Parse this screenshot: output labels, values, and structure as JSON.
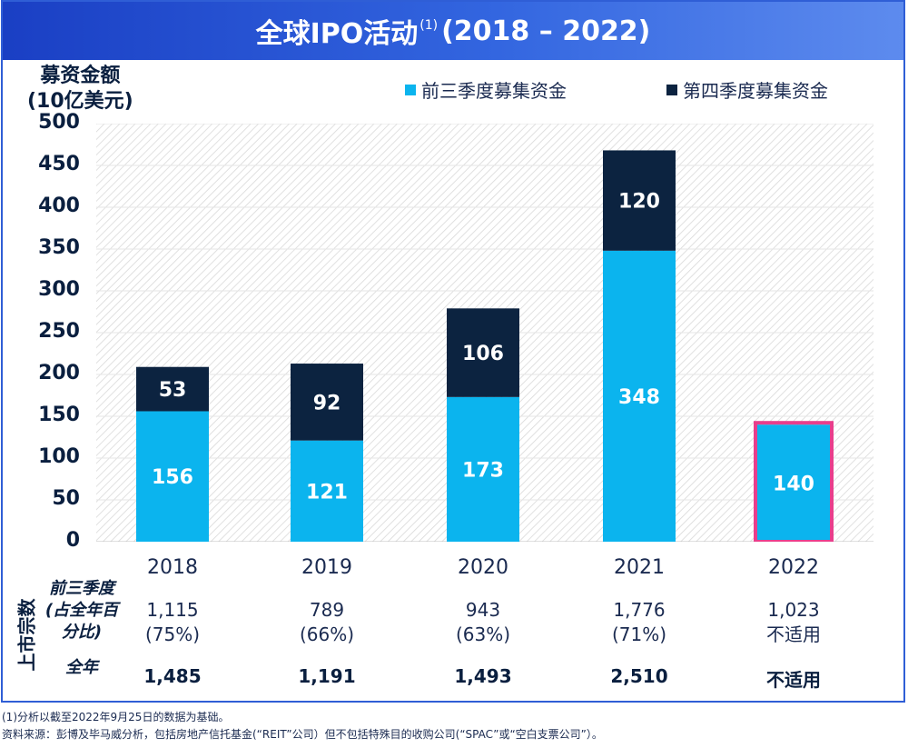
{
  "header": {
    "title_main": "全球IPO活动",
    "title_sup": "(1)",
    "title_years": "(2018 – 2022)"
  },
  "chart_data": {
    "type": "bar",
    "ylabel_line1": "募资金额",
    "ylabel_line2": "(10亿美元)",
    "ylim": [
      0,
      500
    ],
    "yticks": [
      "500",
      "450",
      "400",
      "350",
      "300",
      "250",
      "200",
      "150",
      "100",
      "50",
      "0"
    ],
    "categories": [
      "2018",
      "2019",
      "2020",
      "2021",
      "2022"
    ],
    "series": [
      {
        "name": "前三季度募集资金",
        "values": [
          156,
          121,
          173,
          348,
          140
        ],
        "color": "#0bb4ee"
      },
      {
        "name": "第四季度募集资金",
        "values": [
          53,
          92,
          106,
          120,
          null
        ],
        "color": "#0c2340"
      }
    ],
    "highlight_color": "#e83e8c"
  },
  "table": {
    "side_label": "上市宗数",
    "row1_label_lines": [
      "前三季度",
      "(占全年百",
      "分比)"
    ],
    "row2_label": "全年",
    "row1_values": [
      [
        "1,115",
        "(75%)"
      ],
      [
        "789",
        "(66%)"
      ],
      [
        "943",
        "(63%)"
      ],
      [
        "1,776",
        "(71%)"
      ],
      [
        "1,023",
        "不适用"
      ]
    ],
    "row2_values": [
      "1,485",
      "1,191",
      "1,493",
      "2,510",
      "不适用"
    ]
  },
  "footnotes": {
    "note1": "(1)分析以截至2022年9月25日的数据为基础。",
    "note2": "资料来源：彭博及毕马威分析，包括房地产信托基金(“REIT”公司）但不包括特殊目的收购公司(“SPAC”或“空白支票公司”）。"
  }
}
